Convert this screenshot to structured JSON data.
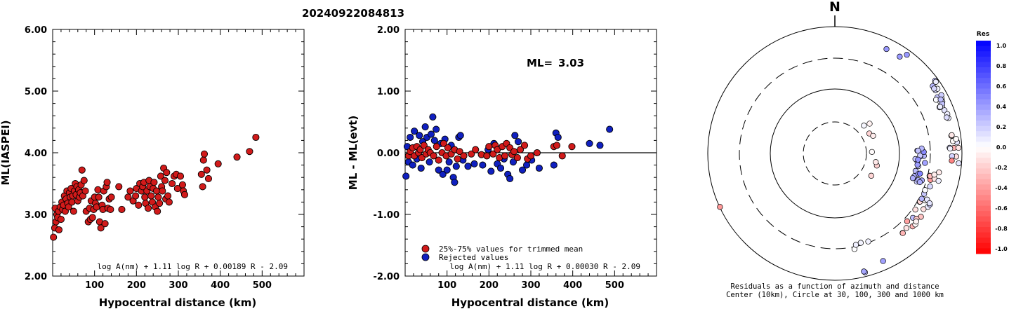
{
  "title": "20240922084813",
  "chart_data": [
    {
      "type": "scatter",
      "name": "ml-vs-distance",
      "xlabel": "Hypocentral distance (km)",
      "ylabel": "ML(IASPEI)",
      "ylim": [
        2.0,
        6.0
      ],
      "xlim": [
        0,
        600
      ],
      "yticks": [
        "2.00",
        "3.00",
        "4.00",
        "5.00",
        "6.00"
      ],
      "formula": "log A(nm) + 1.11 log R + 0.00189 R - 2.09",
      "points": [
        [
          2,
          2.63
        ],
        [
          5,
          2.78
        ],
        [
          6,
          3.1
        ],
        [
          8,
          2.88
        ],
        [
          10,
          3.0
        ],
        [
          12,
          2.95
        ],
        [
          14,
          3.05
        ],
        [
          15,
          2.75
        ],
        [
          18,
          3.12
        ],
        [
          20,
          2.92
        ],
        [
          22,
          3.2
        ],
        [
          24,
          3.08
        ],
        [
          26,
          3.15
        ],
        [
          28,
          3.3
        ],
        [
          30,
          3.05
        ],
        [
          32,
          3.25
        ],
        [
          34,
          3.38
        ],
        [
          36,
          3.18
        ],
        [
          38,
          3.12
        ],
        [
          40,
          3.35
        ],
        [
          42,
          3.28
        ],
        [
          44,
          3.42
        ],
        [
          46,
          3.2
        ],
        [
          48,
          3.3
        ],
        [
          50,
          3.05
        ],
        [
          52,
          3.38
        ],
        [
          54,
          3.5
        ],
        [
          56,
          3.32
        ],
        [
          58,
          3.45
        ],
        [
          60,
          3.22
        ],
        [
          62,
          3.4
        ],
        [
          64,
          3.28
        ],
        [
          66,
          3.35
        ],
        [
          68,
          3.48
        ],
        [
          70,
          3.72
        ],
        [
          72,
          3.3
        ],
        [
          75,
          3.55
        ],
        [
          78,
          3.38
        ],
        [
          80,
          3.05
        ],
        [
          85,
          2.88
        ],
        [
          88,
          3.1
        ],
        [
          90,
          2.92
        ],
        [
          92,
          3.22
        ],
        [
          95,
          2.95
        ],
        [
          98,
          3.08
        ],
        [
          100,
          3.28
        ],
        [
          102,
          3.18
        ],
        [
          105,
          3.12
        ],
        [
          108,
          3.4
        ],
        [
          110,
          3.28
        ],
        [
          112,
          2.88
        ],
        [
          115,
          2.78
        ],
        [
          118,
          3.15
        ],
        [
          120,
          3.08
        ],
        [
          122,
          3.38
        ],
        [
          125,
          2.85
        ],
        [
          128,
          3.45
        ],
        [
          130,
          3.52
        ],
        [
          132,
          3.1
        ],
        [
          135,
          3.25
        ],
        [
          138,
          3.08
        ],
        [
          140,
          3.28
        ],
        [
          158,
          3.45
        ],
        [
          165,
          3.08
        ],
        [
          180,
          3.28
        ],
        [
          185,
          3.38
        ],
        [
          192,
          3.22
        ],
        [
          198,
          3.3
        ],
        [
          200,
          3.42
        ],
        [
          205,
          3.15
        ],
        [
          208,
          3.5
        ],
        [
          212,
          3.38
        ],
        [
          215,
          3.45
        ],
        [
          218,
          3.52
        ],
        [
          220,
          3.28
        ],
        [
          222,
          3.18
        ],
        [
          225,
          3.38
        ],
        [
          228,
          3.1
        ],
        [
          230,
          3.55
        ],
        [
          232,
          3.45
        ],
        [
          235,
          3.3
        ],
        [
          238,
          3.2
        ],
        [
          240,
          3.42
        ],
        [
          242,
          3.52
        ],
        [
          245,
          3.12
        ],
        [
          248,
          3.38
        ],
        [
          250,
          3.05
        ],
        [
          252,
          3.28
        ],
        [
          255,
          3.18
        ],
        [
          258,
          3.62
        ],
        [
          260,
          3.45
        ],
        [
          262,
          3.38
        ],
        [
          265,
          3.75
        ],
        [
          268,
          3.55
        ],
        [
          270,
          3.25
        ],
        [
          272,
          3.68
        ],
        [
          275,
          3.3
        ],
        [
          278,
          3.2
        ],
        [
          285,
          3.5
        ],
        [
          290,
          3.62
        ],
        [
          295,
          3.65
        ],
        [
          298,
          3.42
        ],
        [
          305,
          3.62
        ],
        [
          310,
          3.48
        ],
        [
          312,
          3.38
        ],
        [
          315,
          3.32
        ],
        [
          355,
          3.65
        ],
        [
          358,
          3.45
        ],
        [
          360,
          3.88
        ],
        [
          362,
          3.98
        ],
        [
          368,
          3.72
        ],
        [
          372,
          3.58
        ],
        [
          395,
          3.82
        ],
        [
          440,
          3.93
        ],
        [
          470,
          4.02
        ],
        [
          485,
          4.25
        ]
      ]
    },
    {
      "type": "scatter",
      "name": "residual-vs-distance",
      "xlabel": "Hypocentral distance (km)",
      "ylabel": "ML - ML(evt)",
      "ylim": [
        -2.0,
        2.0
      ],
      "xlim": [
        0,
        600
      ],
      "yticks": [
        "-2.00",
        "-1.00",
        "0.00",
        "1.00",
        "2.00"
      ],
      "ml_label": "ML=",
      "ml_value": "3.03",
      "formula": "log A(nm) + 1.11 log R + 0.00030 R - 2.09",
      "legend": [
        {
          "label": "25%-75% values for trimmed mean",
          "color": "#d11a1a"
        },
        {
          "label": "Rejected values",
          "color": "#1020c0"
        }
      ],
      "series": [
        {
          "color": "#d11a1a",
          "points": [
            [
              8,
              -0.05
            ],
            [
              12,
              0.02
            ],
            [
              18,
              0.08
            ],
            [
              22,
              -0.05
            ],
            [
              28,
              0.1
            ],
            [
              32,
              0.0
            ],
            [
              36,
              0.05
            ],
            [
              40,
              -0.08
            ],
            [
              45,
              0.12
            ],
            [
              50,
              -0.02
            ],
            [
              55,
              0.05
            ],
            [
              60,
              0.0
            ],
            [
              68,
              -0.05
            ],
            [
              75,
              0.1
            ],
            [
              80,
              -0.12
            ],
            [
              88,
              0.0
            ],
            [
              92,
              0.15
            ],
            [
              98,
              -0.05
            ],
            [
              102,
              0.08
            ],
            [
              110,
              -0.02
            ],
            [
              118,
              0.05
            ],
            [
              125,
              -0.1
            ],
            [
              130,
              0.02
            ],
            [
              140,
              -0.05
            ],
            [
              158,
              -0.02
            ],
            [
              168,
              0.05
            ],
            [
              182,
              -0.03
            ],
            [
              195,
              -0.05
            ],
            [
              200,
              0.1
            ],
            [
              210,
              -0.02
            ],
            [
              215,
              0.12
            ],
            [
              220,
              0.05
            ],
            [
              225,
              -0.08
            ],
            [
              232,
              0.1
            ],
            [
              238,
              -0.05
            ],
            [
              242,
              0.15
            ],
            [
              250,
              0.08
            ],
            [
              255,
              -0.03
            ],
            [
              260,
              0.02
            ],
            [
              268,
              -0.08
            ],
            [
              275,
              0.05
            ],
            [
              285,
              0.12
            ],
            [
              292,
              -0.1
            ],
            [
              300,
              -0.05
            ],
            [
              315,
              0.0
            ],
            [
              355,
              0.1
            ],
            [
              362,
              0.12
            ],
            [
              375,
              -0.05
            ],
            [
              398,
              0.1
            ]
          ]
        },
        {
          "color": "#1020c0",
          "points": [
            [
              2,
              -0.38
            ],
            [
              5,
              0.1
            ],
            [
              8,
              -0.15
            ],
            [
              12,
              0.25
            ],
            [
              18,
              -0.2
            ],
            [
              22,
              0.35
            ],
            [
              28,
              -0.1
            ],
            [
              34,
              0.28
            ],
            [
              38,
              -0.25
            ],
            [
              42,
              0.18
            ],
            [
              48,
              0.42
            ],
            [
              52,
              0.25
            ],
            [
              58,
              -0.15
            ],
            [
              62,
              0.3
            ],
            [
              66,
              0.58
            ],
            [
              70,
              0.2
            ],
            [
              74,
              0.38
            ],
            [
              80,
              -0.28
            ],
            [
              85,
              0.15
            ],
            [
              90,
              -0.35
            ],
            [
              95,
              0.22
            ],
            [
              100,
              -0.28
            ],
            [
              105,
              -0.15
            ],
            [
              110,
              0.12
            ],
            [
              115,
              -0.4
            ],
            [
              118,
              -0.48
            ],
            [
              122,
              -0.22
            ],
            [
              128,
              0.25
            ],
            [
              132,
              0.28
            ],
            [
              138,
              -0.12
            ],
            [
              150,
              -0.22
            ],
            [
              165,
              -0.18
            ],
            [
              185,
              -0.2
            ],
            [
              198,
              0.05
            ],
            [
              205,
              -0.3
            ],
            [
              212,
              0.15
            ],
            [
              220,
              -0.18
            ],
            [
              228,
              -0.25
            ],
            [
              236,
              -0.1
            ],
            [
              245,
              -0.35
            ],
            [
              250,
              -0.42
            ],
            [
              258,
              -0.15
            ],
            [
              262,
              0.28
            ],
            [
              270,
              0.18
            ],
            [
              280,
              -0.28
            ],
            [
              290,
              -0.2
            ],
            [
              302,
              -0.12
            ],
            [
              320,
              -0.25
            ],
            [
              355,
              -0.2
            ],
            [
              360,
              0.32
            ],
            [
              365,
              0.25
            ],
            [
              440,
              0.15
            ],
            [
              465,
              0.12
            ],
            [
              488,
              0.38
            ]
          ]
        }
      ]
    },
    {
      "type": "polar-scatter",
      "name": "residual-map",
      "north_label": "N",
      "caption_line1": "Residuals as a function of azimuth and distance",
      "caption_line2": "Center (10km), Circle at 30, 100, 300 and 1000 km",
      "colorbar_title": "Res",
      "colorbar_ticks": [
        "1.0",
        "0.8",
        "0.6",
        "0.4",
        "0.2",
        "0.0",
        "-0.2",
        "-0.4",
        "-0.6",
        "-0.8",
        "-1.0"
      ]
    }
  ]
}
